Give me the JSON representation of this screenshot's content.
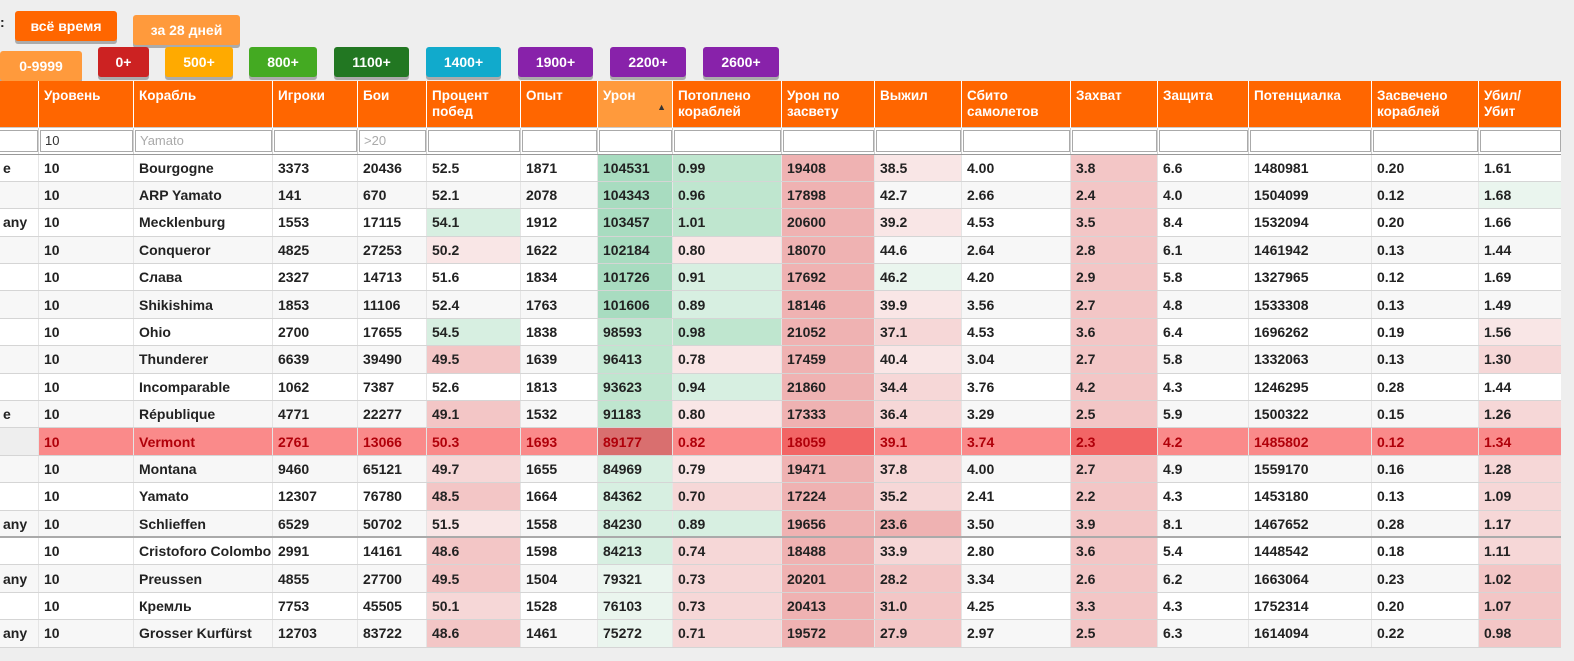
{
  "period_label_suffix": ":",
  "period_buttons": [
    {
      "label": "всё время",
      "color": "#ff6600"
    },
    {
      "label": "за 28 дней",
      "color": "#ff9a3c"
    }
  ],
  "rating_buttons": [
    {
      "label": "0-9999",
      "color": "#ff9a3c"
    },
    {
      "label": "0+",
      "color": "#cc2222"
    },
    {
      "label": "500+",
      "color": "#ffaa00"
    },
    {
      "label": "800+",
      "color": "#44aa22"
    },
    {
      "label": "1100+",
      "color": "#227722"
    },
    {
      "label": "1400+",
      "color": "#11aacc"
    },
    {
      "label": "1900+",
      "color": "#8822aa"
    },
    {
      "label": "2200+",
      "color": "#8822aa"
    },
    {
      "label": "2600+",
      "color": "#8822aa"
    }
  ],
  "table": {
    "headers": [
      "",
      "Уровень",
      "Корабль",
      "Игроки",
      "Бои",
      "Процент побед",
      "Опыт",
      "Урон",
      "Потоплено кораблей",
      "Урон по засвету",
      "Выжил",
      "Сбито самолетов",
      "Захват",
      "Защита",
      "Потенциалка",
      "Засвечено кораблей",
      "Убил/ Убит"
    ],
    "sort_column": "Урон",
    "filters": {
      "level": {
        "value": "10",
        "placeholder": ""
      },
      "ship": {
        "value": "",
        "placeholder": "Yamato"
      },
      "battles": {
        "value": "",
        "placeholder": ">20"
      }
    },
    "rows": [
      {
        "nation": "e",
        "level": "10",
        "ship": "Bourgogne",
        "players": "3373",
        "battles": "20436",
        "winrate": "52.5",
        "exp": "1871",
        "damage": "104531",
        "sunk": "0.99",
        "spot_damage": "19408",
        "survived": "38.5",
        "planes": "4.00",
        "capture": "3.8",
        "defense": "6.6",
        "potential": "1480981",
        "spotted": "0.20",
        "kd": "1.61"
      },
      {
        "nation": "",
        "level": "10",
        "ship": "ARP Yamato",
        "players": "141",
        "battles": "670",
        "winrate": "52.1",
        "exp": "2078",
        "damage": "104343",
        "sunk": "0.96",
        "spot_damage": "17898",
        "survived": "42.7",
        "planes": "2.66",
        "capture": "2.4",
        "defense": "4.0",
        "potential": "1504099",
        "spotted": "0.12",
        "kd": "1.68"
      },
      {
        "nation": "any",
        "level": "10",
        "ship": "Mecklenburg",
        "players": "1553",
        "battles": "17115",
        "winrate": "54.1",
        "exp": "1912",
        "damage": "103457",
        "sunk": "1.01",
        "spot_damage": "20600",
        "survived": "39.2",
        "planes": "4.53",
        "capture": "3.5",
        "defense": "8.4",
        "potential": "1532094",
        "spotted": "0.20",
        "kd": "1.66"
      },
      {
        "nation": "",
        "level": "10",
        "ship": "Conqueror",
        "players": "4825",
        "battles": "27253",
        "winrate": "50.2",
        "exp": "1622",
        "damage": "102184",
        "sunk": "0.80",
        "spot_damage": "18070",
        "survived": "44.6",
        "planes": "2.64",
        "capture": "2.8",
        "defense": "6.1",
        "potential": "1461942",
        "spotted": "0.13",
        "kd": "1.44"
      },
      {
        "nation": "",
        "level": "10",
        "ship": "Слава",
        "players": "2327",
        "battles": "14713",
        "winrate": "51.6",
        "exp": "1834",
        "damage": "101726",
        "sunk": "0.91",
        "spot_damage": "17692",
        "survived": "46.2",
        "planes": "4.20",
        "capture": "2.9",
        "defense": "5.8",
        "potential": "1327965",
        "spotted": "0.12",
        "kd": "1.69"
      },
      {
        "nation": "",
        "level": "10",
        "ship": "Shikishima",
        "players": "1853",
        "battles": "11106",
        "winrate": "52.4",
        "exp": "1763",
        "damage": "101606",
        "sunk": "0.89",
        "spot_damage": "18146",
        "survived": "39.9",
        "planes": "3.56",
        "capture": "2.7",
        "defense": "4.8",
        "potential": "1533308",
        "spotted": "0.13",
        "kd": "1.49"
      },
      {
        "nation": "",
        "level": "10",
        "ship": "Ohio",
        "players": "2700",
        "battles": "17655",
        "winrate": "54.5",
        "exp": "1838",
        "damage": "98593",
        "sunk": "0.98",
        "spot_damage": "21052",
        "survived": "37.1",
        "planes": "4.53",
        "capture": "3.6",
        "defense": "6.4",
        "potential": "1696262",
        "spotted": "0.19",
        "kd": "1.56"
      },
      {
        "nation": "",
        "level": "10",
        "ship": "Thunderer",
        "players": "6639",
        "battles": "39490",
        "winrate": "49.5",
        "exp": "1639",
        "damage": "96413",
        "sunk": "0.78",
        "spot_damage": "17459",
        "survived": "40.4",
        "planes": "3.04",
        "capture": "2.7",
        "defense": "5.8",
        "potential": "1332063",
        "spotted": "0.13",
        "kd": "1.30"
      },
      {
        "nation": "",
        "level": "10",
        "ship": "Incomparable",
        "players": "1062",
        "battles": "7387",
        "winrate": "52.6",
        "exp": "1813",
        "damage": "93623",
        "sunk": "0.94",
        "spot_damage": "21860",
        "survived": "34.4",
        "planes": "3.76",
        "capture": "4.2",
        "defense": "4.3",
        "potential": "1246295",
        "spotted": "0.28",
        "kd": "1.44"
      },
      {
        "nation": "e",
        "level": "10",
        "ship": "République",
        "players": "4771",
        "battles": "22277",
        "winrate": "49.1",
        "exp": "1532",
        "damage": "91183",
        "sunk": "0.80",
        "spot_damage": "17333",
        "survived": "36.4",
        "planes": "3.29",
        "capture": "2.5",
        "defense": "5.9",
        "potential": "1500322",
        "spotted": "0.15",
        "kd": "1.26"
      },
      {
        "nation": "",
        "level": "10",
        "ship": "Vermont",
        "players": "2761",
        "battles": "13066",
        "winrate": "50.3",
        "exp": "1693",
        "damage": "89177",
        "sunk": "0.82",
        "spot_damage": "18059",
        "survived": "39.1",
        "planes": "3.74",
        "capture": "2.3",
        "defense": "4.2",
        "potential": "1485802",
        "spotted": "0.12",
        "kd": "1.34"
      },
      {
        "nation": "",
        "level": "10",
        "ship": "Montana",
        "players": "9460",
        "battles": "65121",
        "winrate": "49.7",
        "exp": "1655",
        "damage": "84969",
        "sunk": "0.79",
        "spot_damage": "19471",
        "survived": "37.8",
        "planes": "4.00",
        "capture": "2.7",
        "defense": "4.9",
        "potential": "1559170",
        "spotted": "0.16",
        "kd": "1.28"
      },
      {
        "nation": "",
        "level": "10",
        "ship": "Yamato",
        "players": "12307",
        "battles": "76780",
        "winrate": "48.5",
        "exp": "1664",
        "damage": "84362",
        "sunk": "0.70",
        "spot_damage": "17224",
        "survived": "35.2",
        "planes": "2.41",
        "capture": "2.2",
        "defense": "4.3",
        "potential": "1453180",
        "spotted": "0.13",
        "kd": "1.09"
      },
      {
        "nation": "any",
        "level": "10",
        "ship": "Schlieffen",
        "players": "6529",
        "battles": "50702",
        "winrate": "51.5",
        "exp": "1558",
        "damage": "84230",
        "sunk": "0.89",
        "spot_damage": "19656",
        "survived": "23.6",
        "planes": "3.50",
        "capture": "3.9",
        "defense": "8.1",
        "potential": "1467652",
        "spotted": "0.28",
        "kd": "1.17"
      },
      {
        "nation": "",
        "level": "10",
        "ship": "Cristoforo Colombo",
        "players": "2991",
        "battles": "14161",
        "winrate": "48.6",
        "exp": "1598",
        "damage": "84213",
        "sunk": "0.74",
        "spot_damage": "18488",
        "survived": "33.9",
        "planes": "2.80",
        "capture": "3.6",
        "defense": "5.4",
        "potential": "1448542",
        "spotted": "0.18",
        "kd": "1.11"
      },
      {
        "nation": "any",
        "level": "10",
        "ship": "Preussen",
        "players": "4855",
        "battles": "27700",
        "winrate": "49.5",
        "exp": "1504",
        "damage": "79321",
        "sunk": "0.73",
        "spot_damage": "20201",
        "survived": "28.2",
        "planes": "3.34",
        "capture": "2.6",
        "defense": "6.2",
        "potential": "1663064",
        "spotted": "0.23",
        "kd": "1.02"
      },
      {
        "nation": "",
        "level": "10",
        "ship": "Кремль",
        "players": "7753",
        "battles": "45505",
        "winrate": "50.1",
        "exp": "1528",
        "damage": "76103",
        "sunk": "0.73",
        "spot_damage": "20413",
        "survived": "31.0",
        "planes": "4.25",
        "capture": "3.3",
        "defense": "4.3",
        "potential": "1752314",
        "spotted": "0.20",
        "kd": "1.07"
      },
      {
        "nation": "any",
        "level": "10",
        "ship": "Grosser Kurfürst",
        "players": "12703",
        "battles": "83722",
        "winrate": "48.6",
        "exp": "1461",
        "damage": "75272",
        "sunk": "0.71",
        "spot_damage": "19572",
        "survived": "27.9",
        "planes": "2.97",
        "capture": "2.5",
        "defense": "6.3",
        "potential": "1614094",
        "spotted": "0.22",
        "kd": "0.98"
      }
    ],
    "highlighted_row": 10,
    "separator_after_row": 13,
    "heat": {
      "winrate": [
        "",
        "",
        "g1",
        "r0",
        "",
        "",
        "g1",
        "r2",
        "",
        "r2",
        "",
        "r1",
        "r2",
        "r0",
        "r2",
        "r2",
        "r1",
        "r2"
      ],
      "damage": [
        "g3",
        "g3",
        "g3",
        "g3",
        "g3",
        "g3",
        "g2",
        "g2",
        "g2",
        "g2",
        "",
        "g1",
        "g1",
        "g1",
        "g1",
        "g0",
        "g0",
        "g0"
      ],
      "sunk": [
        "g2",
        "g2",
        "g2",
        "r0",
        "g1",
        "g1",
        "g2",
        "r0",
        "g1",
        "r0",
        "",
        "r0",
        "r1",
        "g1",
        "r1",
        "r1",
        "r1",
        "r1"
      ],
      "spot_damage": [
        "r3",
        "r3",
        "r3",
        "r3",
        "r3",
        "r3",
        "r3",
        "r3",
        "r3",
        "r3",
        "",
        "r3",
        "r3",
        "r3",
        "r3",
        "r3",
        "r3",
        "r3"
      ],
      "survived": [
        "r0",
        "",
        "r0",
        "",
        "g0",
        "r0",
        "r1",
        "r0",
        "r1",
        "r1",
        "",
        "r1",
        "r1",
        "r3",
        "r1",
        "r2",
        "r2",
        "r2"
      ],
      "capture": [
        "r2",
        "r2",
        "r2",
        "r2",
        "r2",
        "r2",
        "r2",
        "r2",
        "r2",
        "r2",
        "",
        "r2",
        "r2",
        "r2",
        "r2",
        "r2",
        "r2",
        "r2"
      ],
      "kd": [
        "",
        "g0",
        "",
        "",
        "",
        "",
        "r0",
        "r1",
        "",
        "r1",
        "",
        "r1",
        "r1",
        "r1",
        "r1",
        "r2",
        "r2",
        "r2"
      ]
    }
  }
}
